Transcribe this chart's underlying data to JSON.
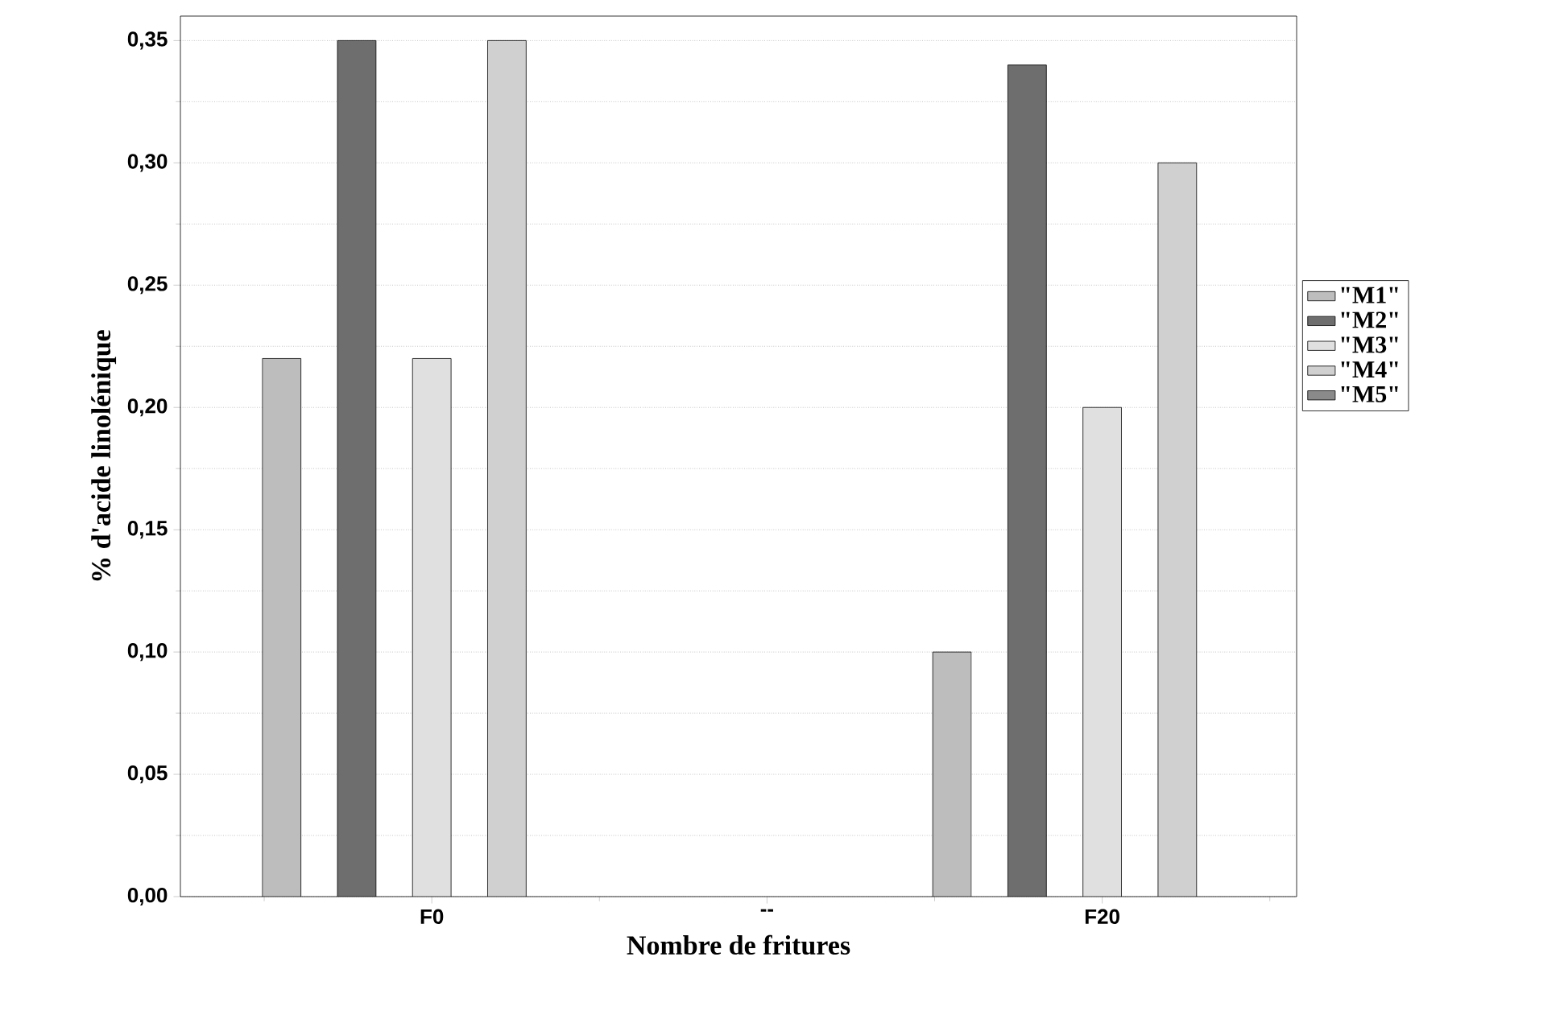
{
  "chart_data": {
    "type": "bar",
    "xlabel": "Nombre de fritures",
    "ylabel": "% d'acide linolénique",
    "categories": [
      "F0",
      "--",
      "F20"
    ],
    "series": [
      {
        "name": "\"M1\"",
        "color": "#bdbdbd",
        "values": [
          0.22,
          null,
          0.1
        ]
      },
      {
        "name": "\"M2\"",
        "color": "#6e6e6e",
        "values": [
          0.35,
          null,
          0.34
        ]
      },
      {
        "name": "\"M3\"",
        "color": "#e0e0e0",
        "values": [
          0.22,
          null,
          0.2
        ]
      },
      {
        "name": "\"M4\"",
        "color": "#d0d0d0",
        "values": [
          0.35,
          null,
          0.3
        ]
      },
      {
        "name": "\"M5\"",
        "color": "#8a8a8a",
        "values": [
          null,
          null,
          null
        ]
      }
    ],
    "ylim": [
      0,
      0.36
    ],
    "yticks": [
      {
        "value": 0,
        "label": "0,00"
      },
      {
        "value": 0.05,
        "label": "0,05"
      },
      {
        "value": 0.1,
        "label": "0,10"
      },
      {
        "value": 0.15,
        "label": "0,15"
      },
      {
        "value": 0.2,
        "label": "0,20"
      },
      {
        "value": 0.25,
        "label": "0,25"
      },
      {
        "value": 0.3,
        "label": "0,30"
      },
      {
        "value": 0.35,
        "label": "0,35"
      }
    ],
    "grid": "y",
    "legend": "right"
  }
}
